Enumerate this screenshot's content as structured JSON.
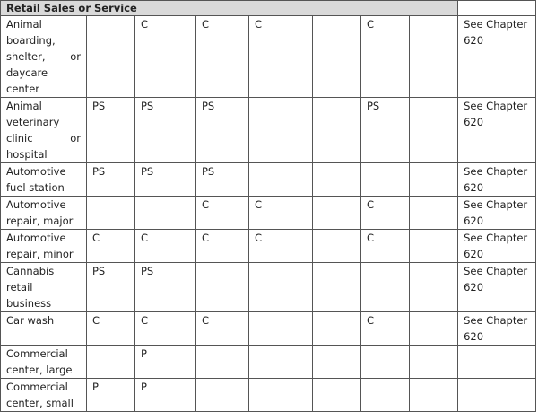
{
  "section_title": "Retail Sales or Service",
  "rows": [
    {
      "use": "Animal boarding, shelter, or daycare center",
      "cells": [
        "",
        "C",
        "C",
        "C",
        "",
        "C",
        ""
      ],
      "note": "See Chapter 620"
    },
    {
      "use": "Animal veterinary clinic or hospital",
      "cells": [
        "PS",
        "PS",
        "PS",
        "",
        "",
        "PS",
        ""
      ],
      "note": "See Chapter 620"
    },
    {
      "use": "Automotive fuel station",
      "cells": [
        "PS",
        "PS",
        "PS",
        "",
        "",
        "",
        ""
      ],
      "note": "See Chapter 620"
    },
    {
      "use": "Automotive repair, major",
      "cells": [
        "",
        "",
        "C",
        "C",
        "",
        "C",
        ""
      ],
      "note": "See Chapter 620"
    },
    {
      "use": "Automotive repair, minor",
      "cells": [
        "C",
        "C",
        "C",
        "C",
        "",
        "C",
        ""
      ],
      "note": "See Chapter 620"
    },
    {
      "use": "Cannabis retail business",
      "cells": [
        "PS",
        "PS",
        "",
        "",
        "",
        "",
        ""
      ],
      "note": "See Chapter 620"
    },
    {
      "use": "Car wash",
      "cells": [
        "C",
        "C",
        "C",
        "",
        "",
        "C",
        ""
      ],
      "note": "See Chapter 620"
    },
    {
      "use": "Commercial center, large",
      "cells": [
        "",
        "P",
        "",
        "",
        "",
        "",
        ""
      ],
      "note": ""
    },
    {
      "use": "Commercial center, small",
      "cells": [
        "P",
        "P",
        "",
        "",
        "",
        "",
        ""
      ],
      "note": ""
    }
  ]
}
